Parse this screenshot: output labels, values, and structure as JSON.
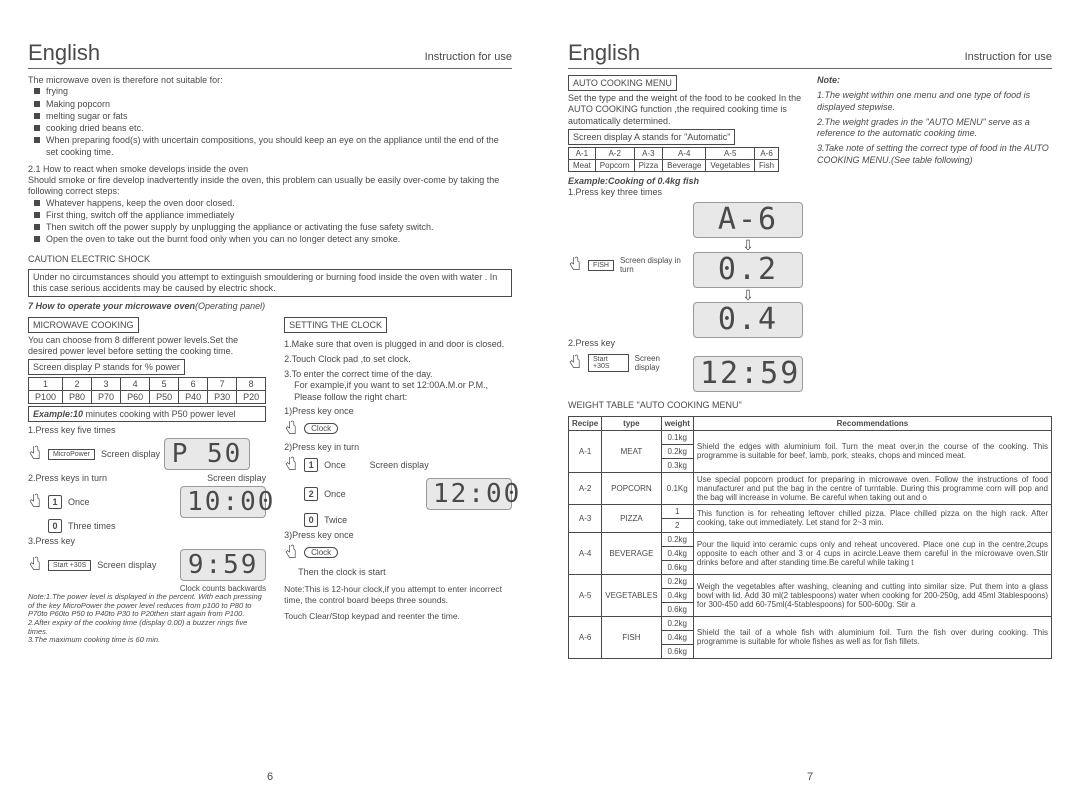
{
  "header": {
    "lang": "English",
    "ifu": "Instruction for use"
  },
  "page6": {
    "intro": "The microwave oven is therefore not suitable for:",
    "unsuitable": [
      "frying",
      "Making popcorn",
      "melting  sugar or  fats",
      "cooking dried beans etc.",
      "When preparing food(s) with uncertain compositions, you should keep an eye on the appliance until the end of the set cooking time."
    ],
    "smoke_h": "2.1 How to react when smoke develops inside the oven",
    "smoke_p": "Should smoke or fire develop inadvertently inside the oven, this problem can usually be easily over-come by taking the following correct steps:",
    "smoke_steps": [
      "Whatever happens, keep the oven door closed.",
      "First thing, switch off the appliance immediately",
      "Then switch off the power supply by unplugging the appliance or activating the fuse safety switch.",
      "Open the oven to take out the burnt food only when you can no longer detect any smoke."
    ],
    "caution_h": "CAUTION ELECTRIC SHOCK",
    "caution_p": "Under no circumstances should you attempt to extinguish smouldering or burning  food inside the oven with water . In this case serious accidents may be caused by electric shock.",
    "op_h": "7 How to operate your microwave oven",
    "op_sub": "(Operating panel)",
    "mw_h": "MICROWAVE COOKING",
    "mw_p": "You can choose from 8 different power levels.Set the desired power level before setting the cooking time.",
    "mw_display": "Screen display P stands for % power",
    "power_row1": [
      "1",
      "2",
      "3",
      "4",
      "5",
      "6",
      "7",
      "8"
    ],
    "power_row2": [
      "P100",
      "P80",
      "P70",
      "P60",
      "P50",
      "P40",
      "P30",
      "P20"
    ],
    "example_h": "Example:10",
    "example_t": " minutes cooking with P50 power level",
    "step1": "1.Press key five times",
    "micro_btn": "MicroPower",
    "sd": "Screen display",
    "lcd_p50": "P 50",
    "step2": "2.Press keys in turn",
    "once": "Once",
    "three": "Three times",
    "lcd_1000": "10:00",
    "step3": "3.Press key",
    "start_btn": "Start +30S",
    "lcd_959": "9:59",
    "clock_counts": "Clock counts backwards",
    "note1": "Note:1.The power level is displayed in the percent. With each pressing of the key  MicroPower the power level reduces from p100 to P80 to P70to P60to P50 to P40to P30 to P20then start again from P100.",
    "note2": "2.After expiry of the cooking time (display 0.00) a buzzer rings five times.",
    "note3": "3.The maximum cooking time is 60 min.",
    "clock_h": "SETTING THE CLOCK",
    "c1": "1.Make sure that oven is plugged in and door is closed.",
    "c2": "2.Touch Clock pad ,to set clock.",
    "c3": "3.To enter the correct time of the day.",
    "c3b": "For example,if you want to set 12:00A.M.or P.M., Please follow the right chart:",
    "cp1": "1)Press  key once",
    "clock_btn": "Clock",
    "cp2": "2)Press  key in turn",
    "twice": "Twice",
    "lcd_1200": "12:00",
    "cp3": "3)Press  key once",
    "clock_start": "Then the clock is start",
    "clock_note": "Note:This is 12-hour clock,if you attempt to enter incorrect time, the control board beeps three sounds.",
    "clock_note2": "Touch Clear/Stop keypad and reenter the time.",
    "pagenum": "6"
  },
  "page7": {
    "auto_h": "AUTO COOKING MENU",
    "auto_p": "Set the type and the weight of the food to be cooked In the  AUTO COOKING function ,the required cooking time is automatically determined.",
    "auto_display": "Screen display A stands for \"Automatic\"",
    "auto_row1": [
      "A-1",
      "A-2",
      "A-3",
      "A-4",
      "A-5",
      "A-6"
    ],
    "auto_row2": [
      "Meat",
      "Popcorn",
      "Pizza",
      "Beverage",
      "Vegetables",
      "Fish"
    ],
    "ex_h": "Example:Cooking of 0.4kg fish",
    "s1": "1.Press key three times",
    "lcd_a6": "A-6",
    "fish_btn": "FISH",
    "in_turn": "Screen display in turn",
    "lcd_02": "0.2",
    "lcd_04": "0.4",
    "s2": "2.Press key",
    "lcd_1259": "12:59",
    "note_h": "Note:",
    "n1": "1.The weight within one menu and one type of food is displayed stepwise.",
    "n2": "2.The weight grades in the \"AUTO MENU\" serve as a reference to the automatic cooking time.",
    "n3": "3.Take note of setting the correct type of food in the AUTO COOKING MENU.(See table following)",
    "wt_h": "WEIGHT TABLE \"AUTO COOKING MENU\"",
    "cols": [
      "Recipe",
      "type",
      "weight",
      "Recommendations"
    ],
    "rows": [
      {
        "r": "A-1",
        "t": "MEAT",
        "w": [
          "0.1kg",
          "0.2kg",
          "0.3kg"
        ],
        "rec": "Shield the edges with aluminium foil. Turn the meat over,in the course of  the cooking. This programme is suitable for beef, lamb, pork, steaks, chops and minced meat."
      },
      {
        "r": "A-2",
        "t": "POPCORN",
        "w": [
          "0.1Kg"
        ],
        "rec": "Use special popcorn product for preparing in microwave oven. Follow the instructions of food manufacturer and put the bag in the centre of turntable. During this programme corn will pop and the bag will increase in volume. Be careful when taking out and o"
      },
      {
        "r": "A-3",
        "t": "PIZZA",
        "w": [
          "1",
          "2"
        ],
        "rec": "This function is for reheating leftover chilled pizza. Place chilled pizza on the high rack. After cooking, take out immediately. Let stand for 2~3 min."
      },
      {
        "r": "A-4",
        "t": "BEVERAGE",
        "w": [
          "0.2kg",
          "0.4kg",
          "0.6kg"
        ],
        "rec": "Pour the liquid into ceramic cups only and reheat uncovered. Place one cup in the centre,2cups opposite to each other and 3 or 4 cups in acircle.Leave them careful in the microwave oven.Stir drinks before and after standing time.Be careful while taking t"
      },
      {
        "r": "A-5",
        "t": "VEGETABLES",
        "w": [
          "0.2kg",
          "0.4kg",
          "0.6kg"
        ],
        "rec": "Weigh the vegetables after washing, cleaning and cutting into similar size. Put them into a glass bowl with lid. Add 30 ml(2 tablespoons) water when cooking for 200-250g, add 45ml 3tablespoons) for 300-450 add 60-75ml(4-5tablespoons) for 500-600g. Stir a"
      },
      {
        "r": "A-6",
        "t": "FISH",
        "w": [
          "0.2kg",
          "0.4kg",
          "0.6kg"
        ],
        "rec": "Shield the tail of a whole fish with aluminium foil. Turn the fish over during cooking. This programme is suitable for whole fishes as well as for fish fillets."
      }
    ],
    "pagenum": "7"
  }
}
